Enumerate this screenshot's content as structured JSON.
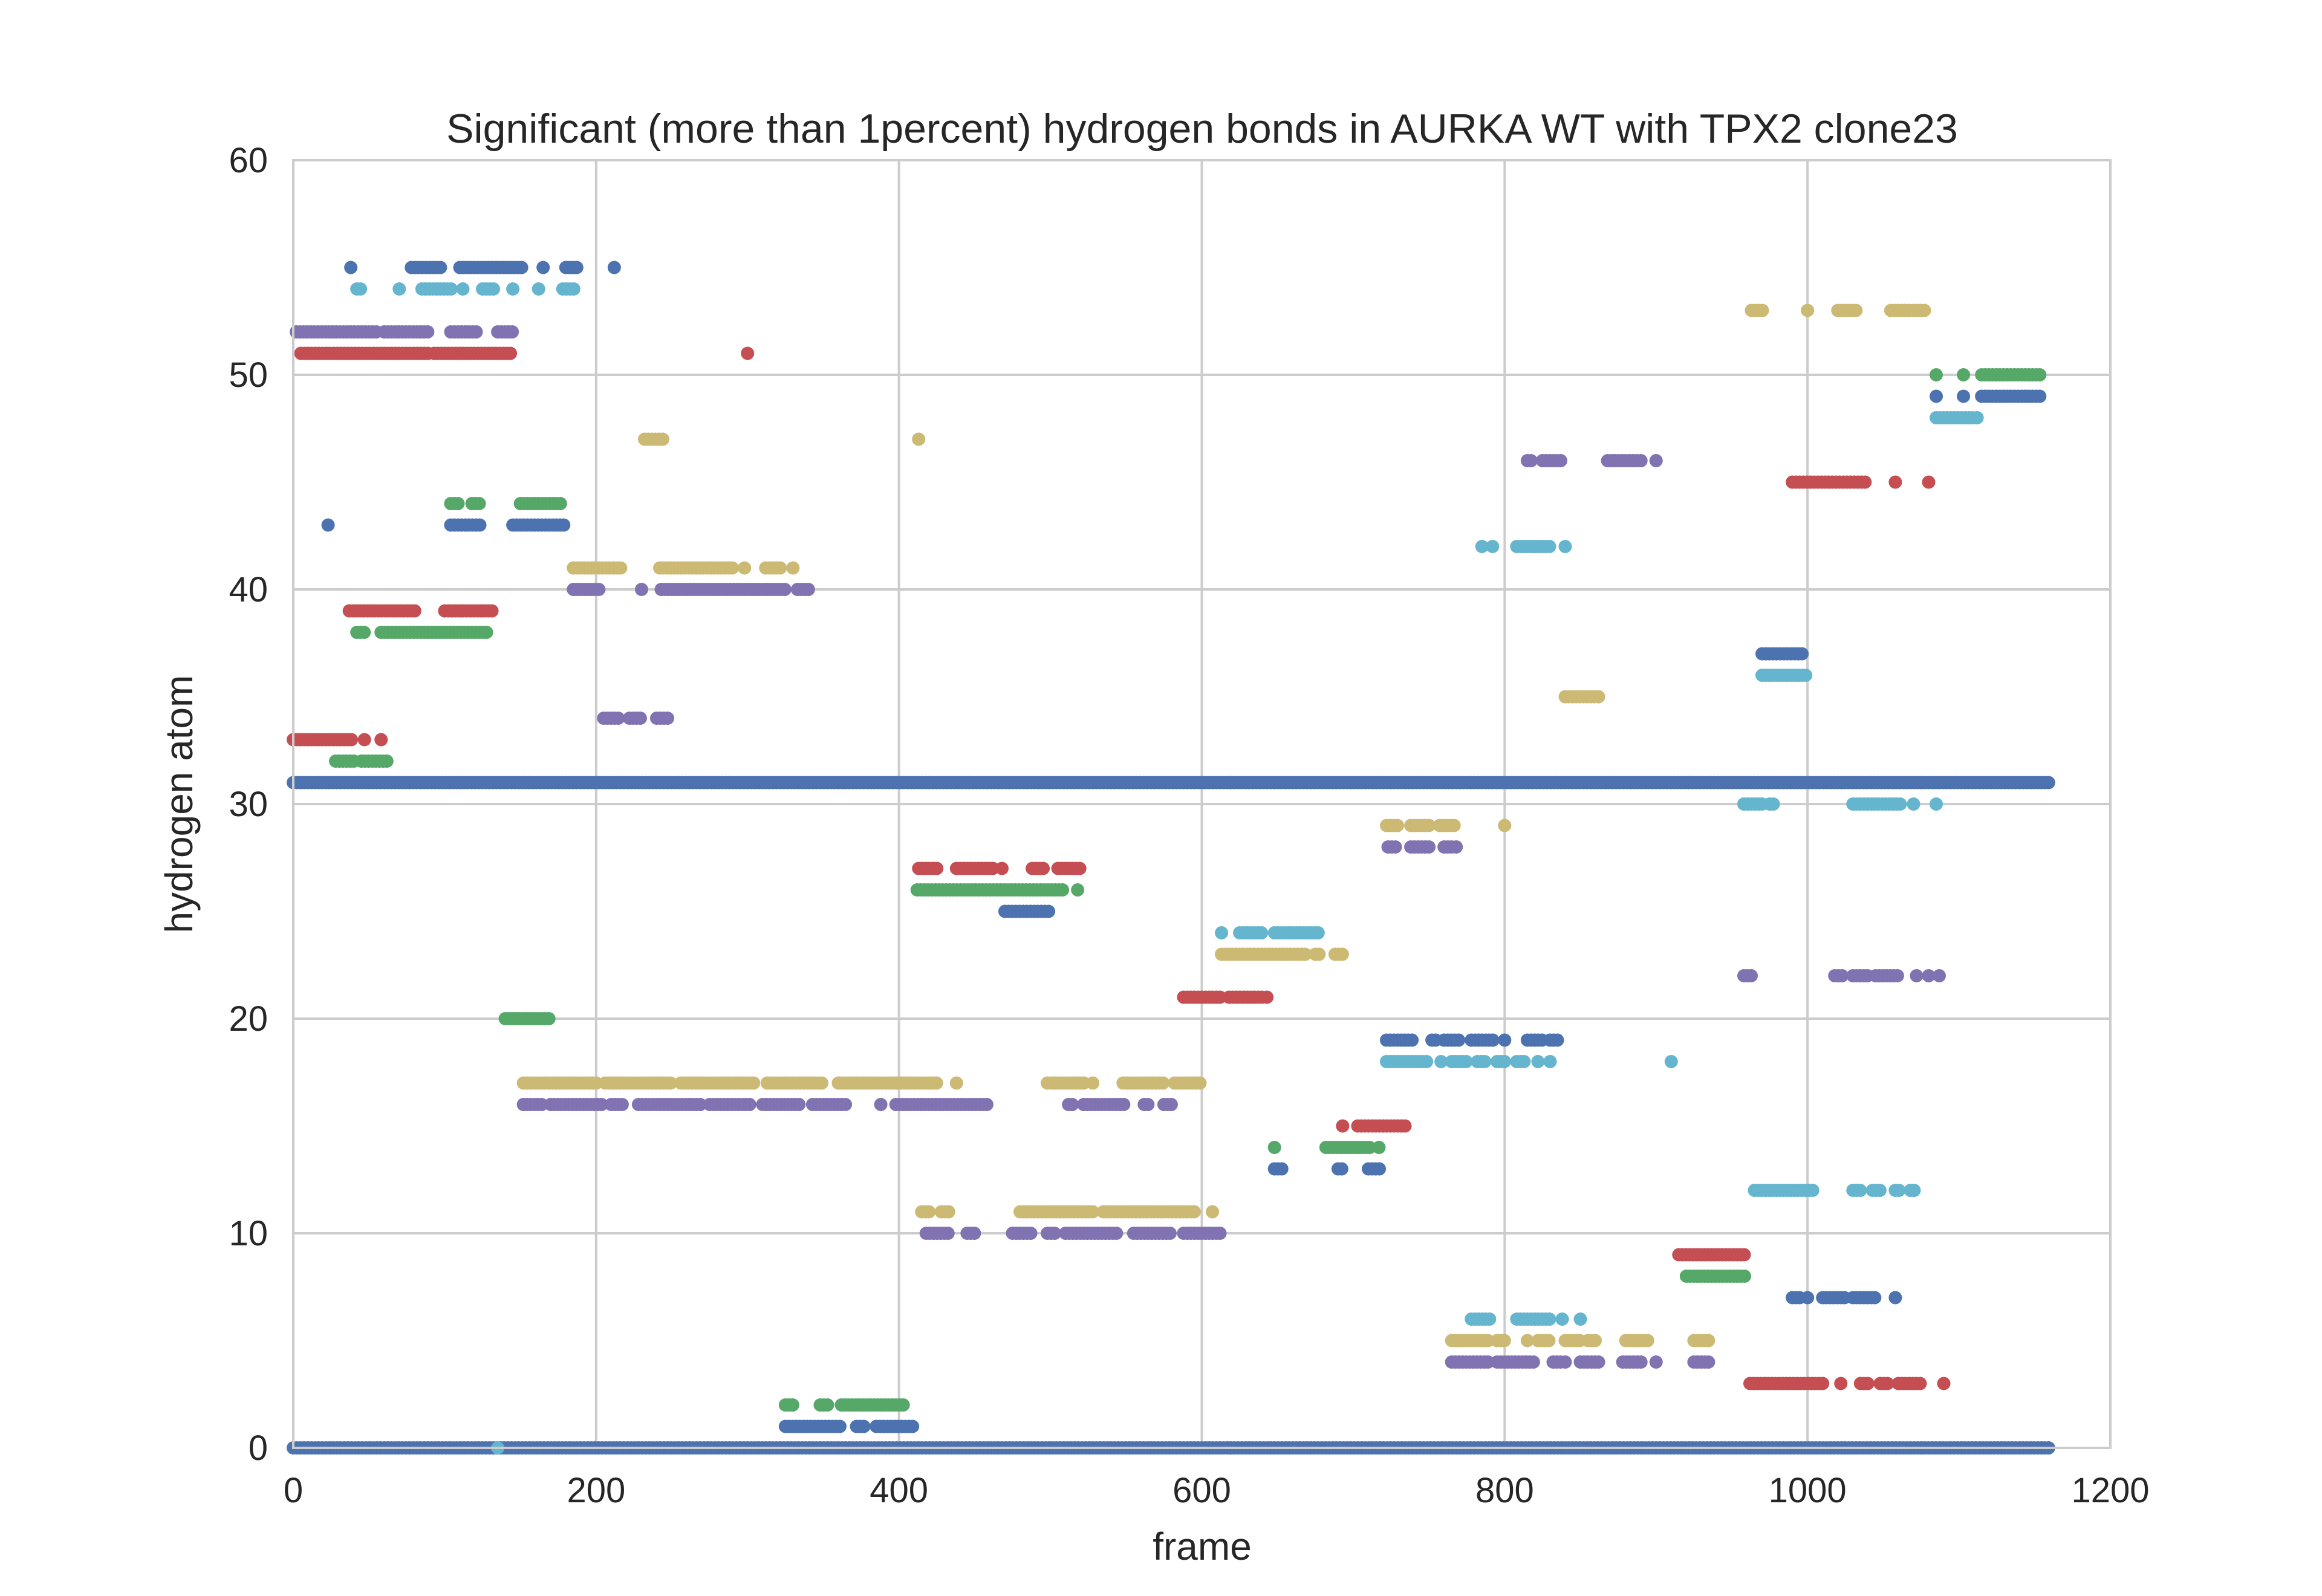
{
  "chart_data": {
    "type": "scatter",
    "title": "Significant (more than 1percent) hydrogen bonds in AURKA WT with TPX2 clone23",
    "xlabel": "frame",
    "ylabel": "hydrogen atom",
    "xlim": [
      0,
      1200
    ],
    "ylim": [
      0,
      60
    ],
    "xticks": [
      0,
      200,
      400,
      600,
      800,
      1000,
      1200
    ],
    "yticks": [
      0,
      10,
      20,
      30,
      40,
      50,
      60
    ],
    "grid": true,
    "legend": "none",
    "colors": {
      "blue": "#4C72B0",
      "green": "#55A868",
      "red": "#C44E52",
      "purple": "#8172B2",
      "yellow": "#CCB974",
      "cyan": "#64B5CD",
      "grid": "#cccccc",
      "frame": "#cccccc"
    },
    "segments": [
      {
        "color": "blue",
        "y": 0,
        "x": [
          [
            0,
            1160
          ]
        ]
      },
      {
        "color": "blue",
        "y": 31,
        "x": [
          [
            0,
            1160
          ]
        ]
      },
      {
        "color": "red",
        "y": 33,
        "x": [
          [
            0,
            40
          ],
          [
            47,
            47
          ],
          [
            58,
            58
          ]
        ]
      },
      {
        "color": "green",
        "y": 32,
        "x": [
          [
            28,
            42
          ],
          [
            45,
            62
          ]
        ]
      },
      {
        "color": "red",
        "y": 51,
        "x": [
          [
            5,
            90
          ],
          [
            93,
            145
          ],
          [
            300,
            300
          ]
        ]
      },
      {
        "color": "purple",
        "y": 52,
        "x": [
          [
            2,
            55
          ],
          [
            60,
            90
          ],
          [
            104,
            123
          ],
          [
            135,
            146
          ]
        ]
      },
      {
        "color": "blue",
        "y": 55,
        "x": [
          [
            38,
            38
          ],
          [
            78,
            98
          ],
          [
            110,
            152
          ],
          [
            165,
            165
          ],
          [
            180,
            188
          ],
          [
            212,
            212
          ]
        ]
      },
      {
        "color": "cyan",
        "y": 54,
        "x": [
          [
            42,
            45
          ],
          [
            70,
            70
          ],
          [
            85,
            105
          ],
          [
            112,
            112
          ],
          [
            125,
            133
          ],
          [
            145,
            145
          ],
          [
            162,
            162
          ],
          [
            178,
            186
          ]
        ]
      },
      {
        "color": "blue",
        "y": 43,
        "x": [
          [
            23,
            23
          ],
          [
            104,
            124
          ],
          [
            145,
            180
          ]
        ]
      },
      {
        "color": "green",
        "y": 44,
        "x": [
          [
            104,
            109
          ],
          [
            118,
            124
          ],
          [
            150,
            177
          ]
        ]
      },
      {
        "color": "red",
        "y": 39,
        "x": [
          [
            37,
            82
          ],
          [
            100,
            133
          ]
        ]
      },
      {
        "color": "green",
        "y": 38,
        "x": [
          [
            42,
            48
          ],
          [
            58,
            128
          ]
        ]
      },
      {
        "color": "green",
        "y": 20,
        "x": [
          [
            140,
            170
          ]
        ]
      },
      {
        "color": "yellow",
        "y": 41,
        "x": [
          [
            185,
            218
          ],
          [
            242,
            290
          ],
          [
            298,
            298
          ],
          [
            312,
            322
          ],
          [
            330,
            330
          ]
        ]
      },
      {
        "color": "purple",
        "y": 40,
        "x": [
          [
            185,
            202
          ],
          [
            230,
            232
          ],
          [
            243,
            325
          ],
          [
            333,
            342
          ]
        ]
      },
      {
        "color": "purple",
        "y": 34,
        "x": [
          [
            205,
            215
          ],
          [
            222,
            230
          ],
          [
            240,
            248
          ]
        ]
      },
      {
        "color": "yellow",
        "y": 47,
        "x": [
          [
            232,
            246
          ],
          [
            413,
            413
          ]
        ]
      },
      {
        "color": "yellow",
        "y": 17,
        "x": [
          [
            152,
            200
          ],
          [
            206,
            250
          ],
          [
            256,
            305
          ],
          [
            313,
            350
          ],
          [
            360,
            425
          ],
          [
            438,
            438
          ]
        ]
      },
      {
        "color": "purple",
        "y": 16,
        "x": [
          [
            152,
            165
          ],
          [
            170,
            205
          ],
          [
            210,
            218
          ],
          [
            228,
            270
          ],
          [
            275,
            302
          ],
          [
            310,
            335
          ],
          [
            343,
            365
          ],
          [
            388,
            390
          ],
          [
            398,
            460
          ]
        ]
      },
      {
        "color": "green",
        "y": 2,
        "x": [
          [
            325,
            330
          ],
          [
            348,
            355
          ],
          [
            362,
            405
          ]
        ]
      },
      {
        "color": "blue",
        "y": 1,
        "x": [
          [
            325,
            362
          ],
          [
            372,
            378
          ],
          [
            385,
            410
          ]
        ]
      },
      {
        "color": "cyan",
        "y": 0,
        "x": [
          [
            135,
            135
          ]
        ]
      },
      {
        "color": "red",
        "y": 27,
        "x": [
          [
            413,
            425
          ],
          [
            438,
            462
          ],
          [
            468,
            470
          ],
          [
            488,
            496
          ],
          [
            505,
            520
          ]
        ]
      },
      {
        "color": "green",
        "y": 26,
        "x": [
          [
            412,
            510
          ],
          [
            518,
            518
          ]
        ]
      },
      {
        "color": "blue",
        "y": 25,
        "x": [
          [
            470,
            500
          ]
        ]
      },
      {
        "color": "yellow",
        "y": 11,
        "x": [
          [
            415,
            420
          ],
          [
            428,
            433
          ],
          [
            480,
            530
          ],
          [
            535,
            595
          ],
          [
            607,
            607
          ]
        ]
      },
      {
        "color": "purple",
        "y": 10,
        "x": [
          [
            418,
            433
          ],
          [
            445,
            450
          ],
          [
            475,
            488
          ],
          [
            498,
            505
          ],
          [
            510,
            545
          ],
          [
            555,
            580
          ],
          [
            588,
            612
          ]
        ]
      },
      {
        "color": "yellow",
        "y": 17,
        "x": [
          [
            498,
            522
          ],
          [
            528,
            530
          ],
          [
            548,
            575
          ],
          [
            582,
            600
          ]
        ]
      },
      {
        "color": "purple",
        "y": 16,
        "x": [
          [
            512,
            515
          ],
          [
            522,
            550
          ],
          [
            562,
            565
          ],
          [
            575,
            580
          ]
        ]
      },
      {
        "color": "red",
        "y": 21,
        "x": [
          [
            588,
            612
          ],
          [
            618,
            640
          ],
          [
            643,
            645
          ]
        ]
      },
      {
        "color": "cyan",
        "y": 24,
        "x": [
          [
            613,
            613
          ],
          [
            625,
            640
          ],
          [
            648,
            678
          ]
        ]
      },
      {
        "color": "yellow",
        "y": 23,
        "x": [
          [
            613,
            670
          ],
          [
            675,
            678
          ],
          [
            688,
            693
          ]
        ]
      },
      {
        "color": "blue",
        "y": 13,
        "x": [
          [
            648,
            655
          ],
          [
            690,
            693
          ],
          [
            710,
            718
          ]
        ]
      },
      {
        "color": "green",
        "y": 14,
        "x": [
          [
            648,
            650
          ],
          [
            682,
            712
          ],
          [
            717,
            718
          ]
        ]
      },
      {
        "color": "red",
        "y": 15,
        "x": [
          [
            693,
            693
          ],
          [
            703,
            735
          ]
        ]
      },
      {
        "color": "yellow",
        "y": 29,
        "x": [
          [
            722,
            730
          ],
          [
            738,
            750
          ],
          [
            757,
            767
          ],
          [
            800,
            800
          ]
        ]
      },
      {
        "color": "purple",
        "y": 28,
        "x": [
          [
            723,
            730
          ],
          [
            738,
            752
          ],
          [
            760,
            765
          ],
          [
            768,
            768
          ]
        ]
      },
      {
        "color": "blue",
        "y": 19,
        "x": [
          [
            722,
            740
          ],
          [
            752,
            755
          ],
          [
            760,
            770
          ],
          [
            778,
            785
          ],
          [
            785,
            793
          ],
          [
            800,
            800
          ],
          [
            815,
            825
          ],
          [
            830,
            835
          ]
        ]
      },
      {
        "color": "cyan",
        "y": 18,
        "x": [
          [
            722,
            750
          ],
          [
            758,
            760
          ],
          [
            765,
            775
          ],
          [
            782,
            788
          ],
          [
            795,
            800
          ],
          [
            808,
            815
          ],
          [
            822,
            822
          ],
          [
            830,
            830
          ]
        ]
      },
      {
        "color": "cyan",
        "y": 42,
        "x": [
          [
            785,
            785
          ],
          [
            792,
            792
          ],
          [
            808,
            830
          ],
          [
            840,
            840
          ]
        ]
      },
      {
        "color": "purple",
        "y": 46,
        "x": [
          [
            815,
            818
          ],
          [
            825,
            838
          ],
          [
            868,
            888
          ],
          [
            890,
            890
          ],
          [
            900,
            900
          ]
        ]
      },
      {
        "color": "yellow",
        "y": 35,
        "x": [
          [
            840,
            860
          ],
          [
            862,
            862
          ]
        ]
      },
      {
        "color": "cyan",
        "y": 6,
        "x": [
          [
            778,
            790
          ],
          [
            808,
            830
          ],
          [
            838,
            838
          ],
          [
            850,
            850
          ]
        ]
      },
      {
        "color": "yellow",
        "y": 5,
        "x": [
          [
            765,
            790
          ],
          [
            795,
            802
          ],
          [
            815,
            815
          ],
          [
            822,
            830
          ],
          [
            840,
            850
          ],
          [
            855,
            862
          ],
          [
            880,
            895
          ],
          [
            925,
            935
          ]
        ]
      },
      {
        "color": "purple",
        "y": 4,
        "x": [
          [
            765,
            790
          ],
          [
            795,
            820
          ],
          [
            832,
            837
          ],
          [
            840,
            840
          ],
          [
            850,
            862
          ],
          [
            878,
            890
          ],
          [
            900,
            900
          ],
          [
            925,
            935
          ]
        ]
      },
      {
        "color": "cyan",
        "y": 18,
        "x": [
          [
            910,
            910
          ]
        ]
      },
      {
        "color": "red",
        "y": 9,
        "x": [
          [
            915,
            960
          ]
        ]
      },
      {
        "color": "green",
        "y": 8,
        "x": [
          [
            920,
            960
          ]
        ]
      },
      {
        "color": "yellow",
        "y": 53,
        "x": [
          [
            963,
            972
          ],
          [
            1000,
            1000
          ],
          [
            1020,
            1032
          ],
          [
            1055,
            1068
          ],
          [
            1070,
            1078
          ]
        ]
      },
      {
        "color": "blue",
        "y": 37,
        "x": [
          [
            970,
            998
          ]
        ]
      },
      {
        "color": "cyan",
        "y": 36,
        "x": [
          [
            970,
            1000
          ]
        ]
      },
      {
        "color": "cyan",
        "y": 30,
        "x": [
          [
            958,
            970
          ],
          [
            975,
            978
          ],
          [
            1030,
            1062
          ],
          [
            1070,
            1072
          ],
          [
            1085,
            1085
          ]
        ]
      },
      {
        "color": "purple",
        "y": 22,
        "x": [
          [
            958,
            965
          ],
          [
            1018,
            1025
          ],
          [
            1030,
            1040
          ],
          [
            1045,
            1060
          ],
          [
            1072,
            1072
          ],
          [
            1080,
            1080
          ],
          [
            1087,
            1087
          ]
        ]
      },
      {
        "color": "cyan",
        "y": 12,
        "x": [
          [
            965,
            1005
          ],
          [
            1030,
            1035
          ],
          [
            1043,
            1048
          ],
          [
            1058,
            1062
          ],
          [
            1068,
            1072
          ]
        ]
      },
      {
        "color": "blue",
        "y": 7,
        "x": [
          [
            990,
            995
          ],
          [
            1000,
            1000
          ],
          [
            1010,
            1025
          ],
          [
            1030,
            1045
          ],
          [
            1058,
            1058
          ]
        ]
      },
      {
        "color": "red",
        "y": 3,
        "x": [
          [
            962,
            1010
          ],
          [
            1022,
            1022
          ],
          [
            1035,
            1040
          ],
          [
            1048,
            1055
          ],
          [
            1060,
            1075
          ],
          [
            1090,
            1090
          ]
        ]
      },
      {
        "color": "red",
        "y": 45,
        "x": [
          [
            990,
            1040
          ],
          [
            1058,
            1058
          ],
          [
            1080,
            1080
          ]
        ]
      },
      {
        "color": "cyan",
        "y": 48,
        "x": [
          [
            1085,
            1110
          ],
          [
            1112,
            1112
          ]
        ]
      },
      {
        "color": "blue",
        "y": 49,
        "x": [
          [
            1085,
            1085
          ],
          [
            1103,
            1103
          ],
          [
            1115,
            1155
          ]
        ]
      },
      {
        "color": "green",
        "y": 50,
        "x": [
          [
            1085,
            1085
          ],
          [
            1103,
            1103
          ],
          [
            1115,
            1155
          ]
        ]
      }
    ]
  }
}
